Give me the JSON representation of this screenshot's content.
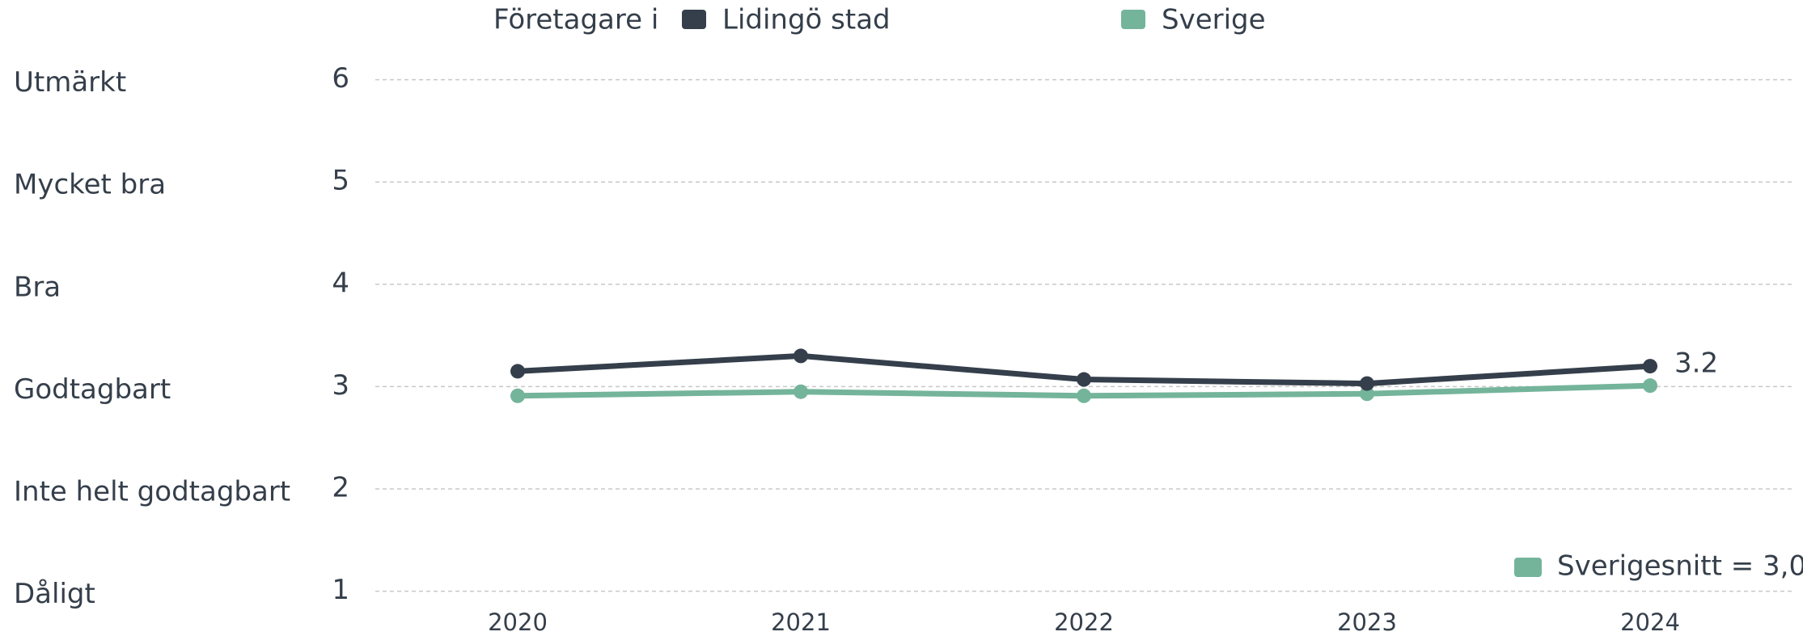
{
  "chart_data": {
    "type": "line",
    "legend_title": "Företagare i",
    "categories": [
      "2020",
      "2021",
      "2022",
      "2023",
      "2024"
    ],
    "series": [
      {
        "name": "Lidingö stad",
        "color": "#353f4b",
        "values": [
          3.15,
          3.3,
          3.07,
          3.03,
          3.2
        ]
      },
      {
        "name": "Sverige",
        "color": "#74b49b",
        "values": [
          2.91,
          2.95,
          2.91,
          2.93,
          3.01
        ]
      }
    ],
    "ylim": [
      1,
      6
    ],
    "yticks": [
      1,
      2,
      3,
      4,
      5,
      6
    ],
    "y_level_labels": [
      "Dåligt",
      "Inte helt godtagbart",
      "Godtagbart",
      "Bra",
      "Mycket bra",
      "Utmärkt"
    ],
    "annotation": {
      "text": "Sverigesnitt = 3,0",
      "color": "#74b49b"
    },
    "grid": true
  }
}
